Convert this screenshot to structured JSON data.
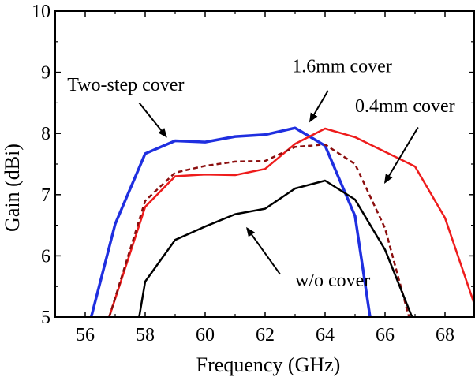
{
  "chart_data": {
    "type": "line",
    "xlabel": "Frequency (GHz)",
    "ylabel": "Gain (dBi)",
    "xlim": [
      55,
      69
    ],
    "ylim": [
      5,
      10
    ],
    "x_ticks": [
      56,
      58,
      60,
      62,
      64,
      66,
      68
    ],
    "y_ticks": [
      5,
      6,
      7,
      8,
      9,
      10
    ],
    "grid": false,
    "series": [
      {
        "name": "Two-step cover",
        "color": "#1f2fe0",
        "dash": "solid",
        "width": 3.5,
        "points": [
          [
            56.2,
            5.0
          ],
          [
            57,
            6.52
          ],
          [
            58,
            7.67
          ],
          [
            59,
            7.88
          ],
          [
            60,
            7.86
          ],
          [
            61,
            7.95
          ],
          [
            62,
            7.98
          ],
          [
            63,
            8.09
          ],
          [
            64,
            7.8
          ],
          [
            65,
            6.65
          ],
          [
            65.5,
            5.0
          ]
        ]
      },
      {
        "name": "1.6mm cover",
        "color": "#ee1c1c",
        "dash": "solid",
        "width": 2.5,
        "points": [
          [
            56.8,
            5.0
          ],
          [
            58,
            6.8
          ],
          [
            59,
            7.3
          ],
          [
            60,
            7.33
          ],
          [
            61,
            7.32
          ],
          [
            62,
            7.42
          ],
          [
            63,
            7.83
          ],
          [
            64,
            8.08
          ],
          [
            65,
            7.94
          ],
          [
            66,
            7.7
          ],
          [
            67,
            7.46
          ],
          [
            68,
            6.62
          ],
          [
            69,
            5.18
          ]
        ]
      },
      {
        "name": "0.4mm cover",
        "color": "#8b0e0e",
        "dash": "dashed",
        "width": 2.5,
        "points": [
          [
            56.8,
            5.0
          ],
          [
            58,
            6.9
          ],
          [
            59,
            7.36
          ],
          [
            60,
            7.47
          ],
          [
            61,
            7.54
          ],
          [
            62,
            7.55
          ],
          [
            63,
            7.78
          ],
          [
            64,
            7.82
          ],
          [
            65,
            7.5
          ],
          [
            66,
            6.45
          ],
          [
            66.8,
            5.0
          ]
        ]
      },
      {
        "name": "w/o cover",
        "color": "#000000",
        "dash": "solid",
        "width": 2.5,
        "points": [
          [
            57.8,
            5.0
          ],
          [
            58,
            5.58
          ],
          [
            59,
            6.26
          ],
          [
            60,
            6.48
          ],
          [
            61,
            6.68
          ],
          [
            62,
            6.77
          ],
          [
            63,
            7.1
          ],
          [
            64,
            7.23
          ],
          [
            65,
            6.92
          ],
          [
            66,
            6.1
          ],
          [
            66.9,
            5.0
          ]
        ]
      }
    ],
    "annotations": [
      {
        "text": "Two-step cover",
        "label_at": [
          55.4,
          8.7
        ],
        "arrow_from": [
          57.8,
          8.5
        ],
        "arrow_to": [
          58.7,
          7.95
        ]
      },
      {
        "text": "1.6mm cover",
        "label_at": [
          62.9,
          9.0
        ],
        "arrow_from": [
          64.1,
          8.7
        ],
        "arrow_to": [
          63.5,
          8.2
        ]
      },
      {
        "text": "0.4mm cover",
        "label_at": [
          65.0,
          8.35
        ],
        "arrow_from": [
          67.1,
          8.1
        ],
        "arrow_to": [
          66.0,
          7.2
        ]
      },
      {
        "text": "w/o cover",
        "label_at": [
          63.0,
          5.5
        ],
        "arrow_from": [
          62.5,
          5.7
        ],
        "arrow_to": [
          61.4,
          6.45
        ]
      }
    ]
  }
}
